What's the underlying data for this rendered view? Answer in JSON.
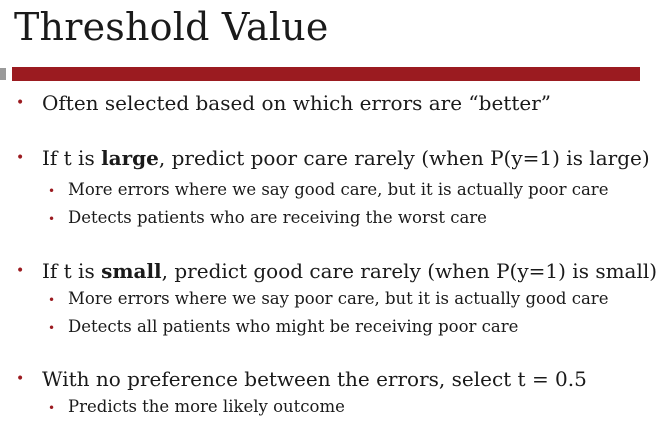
{
  "slide": {
    "title": "Threshold Value",
    "bullets": [
      {
        "text": "Often selected based on which errors are “better”"
      },
      {
        "prefix": "If  t is ",
        "strong": "large",
        "suffix": ", predict poor care rarely (when P(y=1) is large)",
        "sub": [
          "More errors where we say good care, but it is actually poor care",
          "Detects patients who are receiving the worst care"
        ]
      },
      {
        "prefix": "If  t is ",
        "strong": "small",
        "suffix": ", predict good care rarely (when P(y=1) is small)",
        "sub": [
          "More errors where we say poor care, but it is actually good care",
          "Detects all patients who might be receiving poor care"
        ]
      },
      {
        "text": "With no preference between the errors, select t = 0.5",
        "sub": [
          "Predicts the more likely outcome"
        ]
      }
    ],
    "bullet_glyph": "•",
    "colors": {
      "accent": "#9b1b20",
      "rule_left": "#9a9a9a",
      "text": "#1a1a1a",
      "background": "#ffffff"
    }
  }
}
